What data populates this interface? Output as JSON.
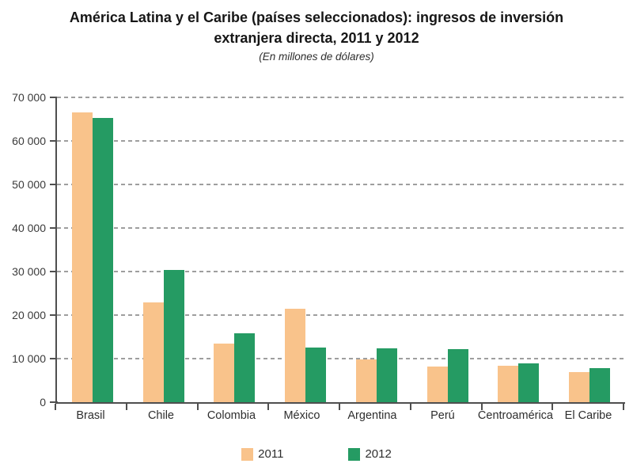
{
  "header": {
    "title_line1": "América Latina y el Caribe (países seleccionados): ingresos de inversión",
    "title_line2": "extranjera directa, 2011 y 2012",
    "subtitle": "(En millones de dólares)"
  },
  "chart_data": {
    "type": "bar",
    "title": "América Latina y el Caribe (países seleccionados): ingresos de inversión extranjera directa, 2011 y 2012",
    "subtitle": "(En millones de dólares)",
    "categories": [
      "Brasil",
      "Chile",
      "Colombia",
      "México",
      "Argentina",
      "Perú",
      "Centroamérica",
      "El Caribe"
    ],
    "series": [
      {
        "name": "2011",
        "color": "#F9C38B",
        "values": [
          66600,
          22900,
          13400,
          21400,
          9900,
          8200,
          8300,
          6900
        ]
      },
      {
        "name": "2012",
        "color": "#259B63",
        "values": [
          65200,
          30300,
          15800,
          12600,
          12400,
          12200,
          8900,
          7900
        ]
      }
    ],
    "xlabel": "",
    "ylabel": "",
    "ylim": [
      0,
      70000
    ],
    "ytick_values": [
      0,
      10000,
      20000,
      30000,
      40000,
      50000,
      60000,
      70000
    ],
    "ytick_labels": [
      "0",
      "10 000",
      "20 000",
      "30 000",
      "40 000",
      "50 000",
      "60 000",
      "70 000"
    ],
    "grid": "horizontal-dashed",
    "legend_position": "bottom",
    "axis_color": "#4f4f4f",
    "gridline_color": "#9e9e9e"
  }
}
